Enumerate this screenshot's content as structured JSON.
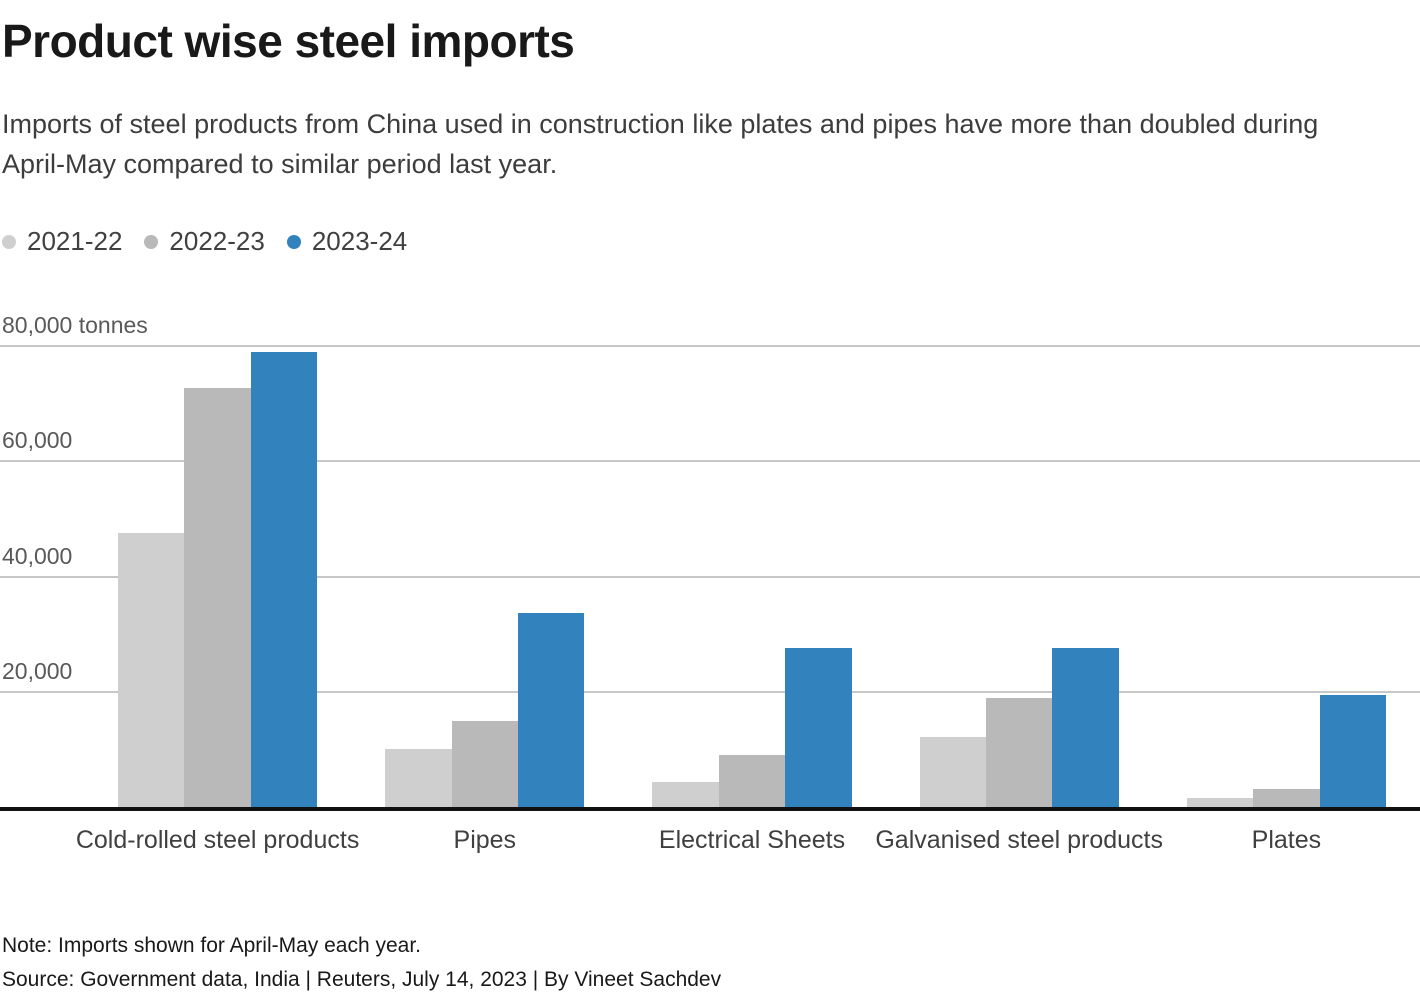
{
  "header": {
    "title": "Product wise steel imports",
    "subtitle": "Imports of steel products from China used in construction like plates and pipes have more than doubled during April-May compared to similar period last year."
  },
  "legend": [
    {
      "label": "2021-22",
      "color": "#cfcfcf"
    },
    {
      "label": "2022-23",
      "color": "#b9b9b9"
    },
    {
      "label": "2023-24",
      "color": "#3182bd"
    }
  ],
  "chart_data": {
    "type": "bar",
    "categories": [
      "Cold-rolled steel products",
      "Pipes",
      "Electrical Sheets",
      "Galvanised steel products",
      "Plates"
    ],
    "series": [
      {
        "name": "2021-22",
        "color": "#cfcfcf",
        "values": [
          47500,
          10000,
          4300,
          12200,
          1600
        ]
      },
      {
        "name": "2022-23",
        "color": "#b9b9b9",
        "values": [
          72800,
          15000,
          9000,
          19000,
          3100
        ]
      },
      {
        "name": "2023-24",
        "color": "#3182bd",
        "values": [
          79000,
          33700,
          27600,
          27600,
          19400
        ]
      }
    ],
    "ylim": [
      0,
      80000
    ],
    "yticks": [
      20000,
      40000,
      60000,
      80000
    ],
    "ytick_labels": [
      "20,000",
      "40,000",
      "60,000",
      "80,000 tonnes"
    ],
    "unit": "tonnes",
    "grid": true,
    "legend_position": "top-left",
    "gridline_color": "#c7c7c7",
    "axis_color": "#111111"
  },
  "footer": {
    "note": "Note: Imports shown for April-May each year.",
    "source": "Source: Government data, India | Reuters, July 14, 2023 | By Vineet Sachdev"
  }
}
